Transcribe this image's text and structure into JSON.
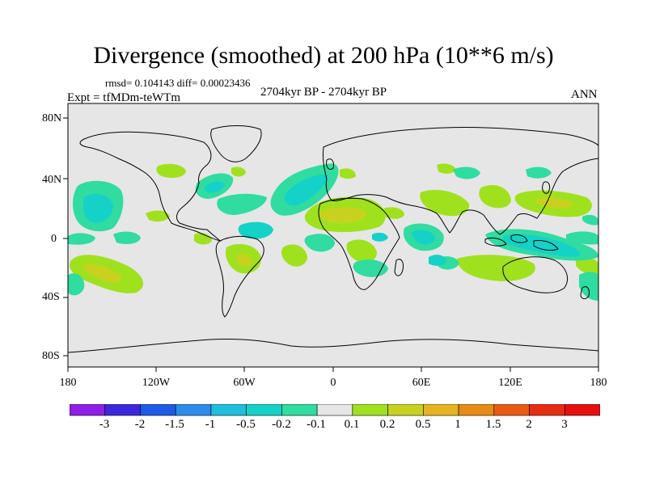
{
  "title": "Divergence (smoothed) at 200 hPa (10**6 m/s)",
  "stats": "rmsd= 0.104143 diff= 0.00023436",
  "experiment": "Expt = tfMDm-teWTm",
  "period": "2704kyr BP - 2704kyr BP",
  "season": "ANN",
  "lat_labels": [
    "80N",
    "40N",
    "0",
    "40S",
    "80S"
  ],
  "lon_labels": [
    "180",
    "120W",
    "60W",
    "0",
    "60E",
    "120E",
    "180"
  ],
  "colorbar": {
    "labels": [
      "-3",
      "-2",
      "-1.5",
      "-1",
      "-0.5",
      "-0.2",
      "-0.1",
      "0.1",
      "0.2",
      "0.5",
      "1",
      "1.5",
      "2",
      "3"
    ],
    "colors": [
      "#8f1ee6",
      "#3c28dc",
      "#1e5ae6",
      "#2d8ceb",
      "#1ebedc",
      "#14d2c8",
      "#30dca0",
      "#e6e6e6",
      "#a0e11e",
      "#c8d21e",
      "#e6b41e",
      "#e68c14",
      "#eb5a14",
      "#e62d14",
      "#e60f0f"
    ]
  },
  "colors": {
    "background": "#e6e6e6",
    "coast": "#000000"
  }
}
